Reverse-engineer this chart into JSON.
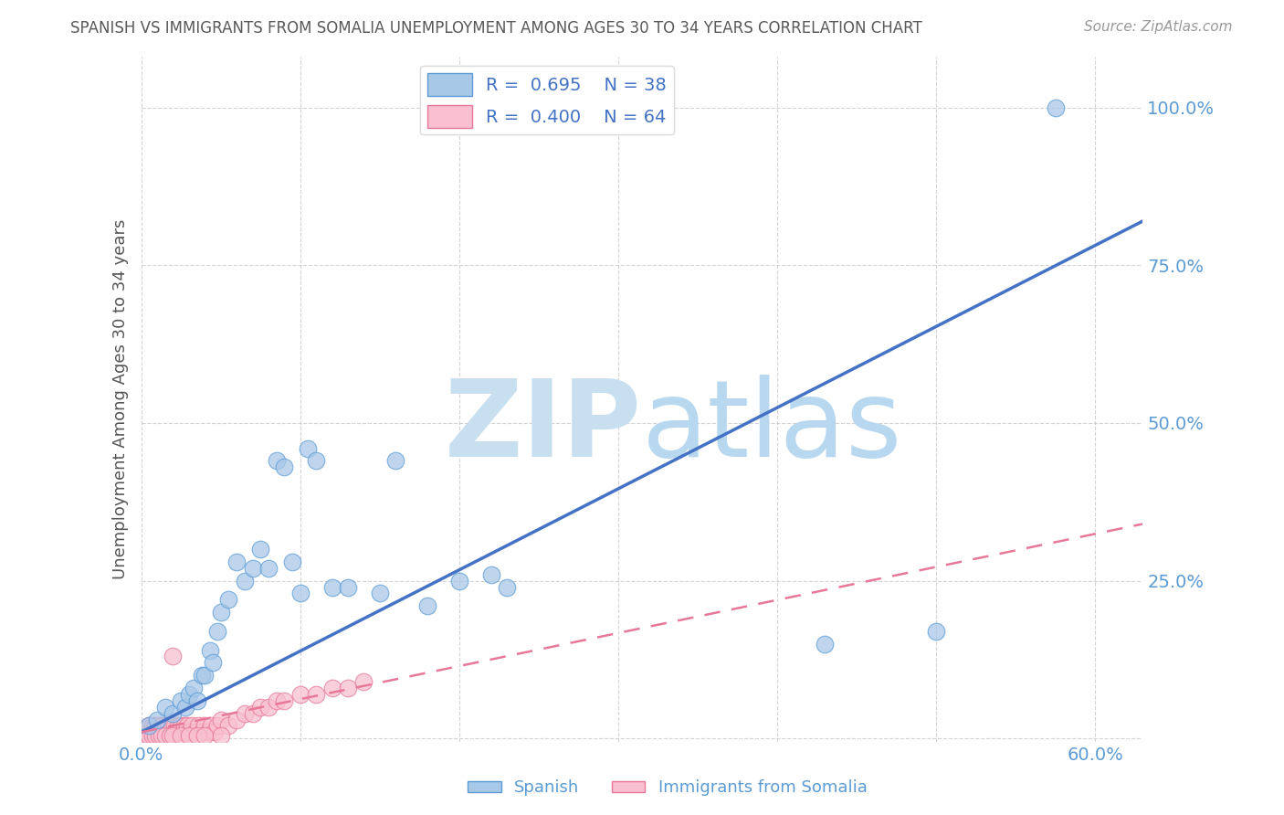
{
  "title": "SPANISH VS IMMIGRANTS FROM SOMALIA UNEMPLOYMENT AMONG AGES 30 TO 34 YEARS CORRELATION CHART",
  "source": "Source: ZipAtlas.com",
  "ylabel": "Unemployment Among Ages 30 to 34 years",
  "xlim": [
    0.0,
    0.63
  ],
  "ylim": [
    -0.005,
    1.08
  ],
  "xticks": [
    0.0,
    0.1,
    0.2,
    0.3,
    0.4,
    0.5,
    0.6
  ],
  "xtick_labels_show": [
    "0.0%",
    "",
    "",
    "",
    "",
    "",
    "60.0%"
  ],
  "yticks": [
    0.0,
    0.25,
    0.5,
    0.75,
    1.0
  ],
  "ytick_labels_show": [
    "",
    "25.0%",
    "50.0%",
    "75.0%",
    "100.0%"
  ],
  "blue_R": 0.695,
  "blue_N": 38,
  "pink_R": 0.4,
  "pink_N": 64,
  "blue_scatter_color": "#a8c8e8",
  "blue_edge_color": "#5b9bd5",
  "pink_scatter_color": "#f8c0d0",
  "pink_edge_color": "#e87898",
  "blue_line_color": "#4472c4",
  "pink_line_color": "#e87898",
  "tick_color": "#5b9bd5",
  "title_color": "#595959",
  "watermark_zip_color": "#c8dff0",
  "watermark_atlas_color": "#b8d8f0",
  "legend_label1": "Spanish",
  "legend_label2": "Immigrants from Somalia",
  "blue_scatter_x": [
    0.005,
    0.01,
    0.015,
    0.02,
    0.025,
    0.028,
    0.03,
    0.033,
    0.035,
    0.038,
    0.04,
    0.043,
    0.045,
    0.048,
    0.05,
    0.055,
    0.06,
    0.065,
    0.07,
    0.075,
    0.08,
    0.085,
    0.09,
    0.095,
    0.1,
    0.105,
    0.11,
    0.12,
    0.13,
    0.15,
    0.16,
    0.18,
    0.2,
    0.22,
    0.23,
    0.43,
    0.5,
    0.575
  ],
  "blue_scatter_y": [
    0.02,
    0.03,
    0.05,
    0.04,
    0.06,
    0.05,
    0.07,
    0.08,
    0.06,
    0.1,
    0.1,
    0.14,
    0.12,
    0.17,
    0.2,
    0.22,
    0.28,
    0.25,
    0.27,
    0.3,
    0.27,
    0.44,
    0.43,
    0.28,
    0.23,
    0.46,
    0.44,
    0.24,
    0.24,
    0.23,
    0.44,
    0.21,
    0.25,
    0.26,
    0.24,
    0.15,
    0.17,
    1.0
  ],
  "pink_scatter_x": [
    0.003,
    0.005,
    0.006,
    0.007,
    0.008,
    0.009,
    0.01,
    0.011,
    0.012,
    0.013,
    0.014,
    0.015,
    0.016,
    0.017,
    0.018,
    0.019,
    0.02,
    0.021,
    0.022,
    0.023,
    0.024,
    0.025,
    0.026,
    0.027,
    0.028,
    0.029,
    0.03,
    0.032,
    0.034,
    0.036,
    0.038,
    0.04,
    0.042,
    0.044,
    0.046,
    0.048,
    0.05,
    0.055,
    0.06,
    0.065,
    0.07,
    0.075,
    0.08,
    0.085,
    0.09,
    0.1,
    0.11,
    0.12,
    0.13,
    0.14,
    0.003,
    0.005,
    0.007,
    0.009,
    0.011,
    0.013,
    0.015,
    0.018,
    0.02,
    0.025,
    0.03,
    0.035,
    0.04,
    0.05
  ],
  "pink_scatter_y": [
    0.01,
    0.02,
    0.01,
    0.02,
    0.01,
    0.02,
    0.01,
    0.02,
    0.01,
    0.02,
    0.01,
    0.02,
    0.01,
    0.02,
    0.01,
    0.02,
    0.13,
    0.02,
    0.01,
    0.02,
    0.01,
    0.02,
    0.01,
    0.02,
    0.01,
    0.02,
    0.01,
    0.02,
    0.01,
    0.02,
    0.01,
    0.02,
    0.01,
    0.02,
    0.01,
    0.02,
    0.03,
    0.02,
    0.03,
    0.04,
    0.04,
    0.05,
    0.05,
    0.06,
    0.06,
    0.07,
    0.07,
    0.08,
    0.08,
    0.09,
    0.005,
    0.005,
    0.005,
    0.005,
    0.005,
    0.005,
    0.005,
    0.005,
    0.005,
    0.005,
    0.005,
    0.005,
    0.005,
    0.005
  ],
  "blue_line_x0": 0.0,
  "blue_line_y0": 0.01,
  "blue_line_x1": 0.63,
  "blue_line_y1": 0.82,
  "pink_line_x0": 0.0,
  "pink_line_y0": 0.01,
  "pink_line_x1": 0.63,
  "pink_line_y1": 0.34
}
